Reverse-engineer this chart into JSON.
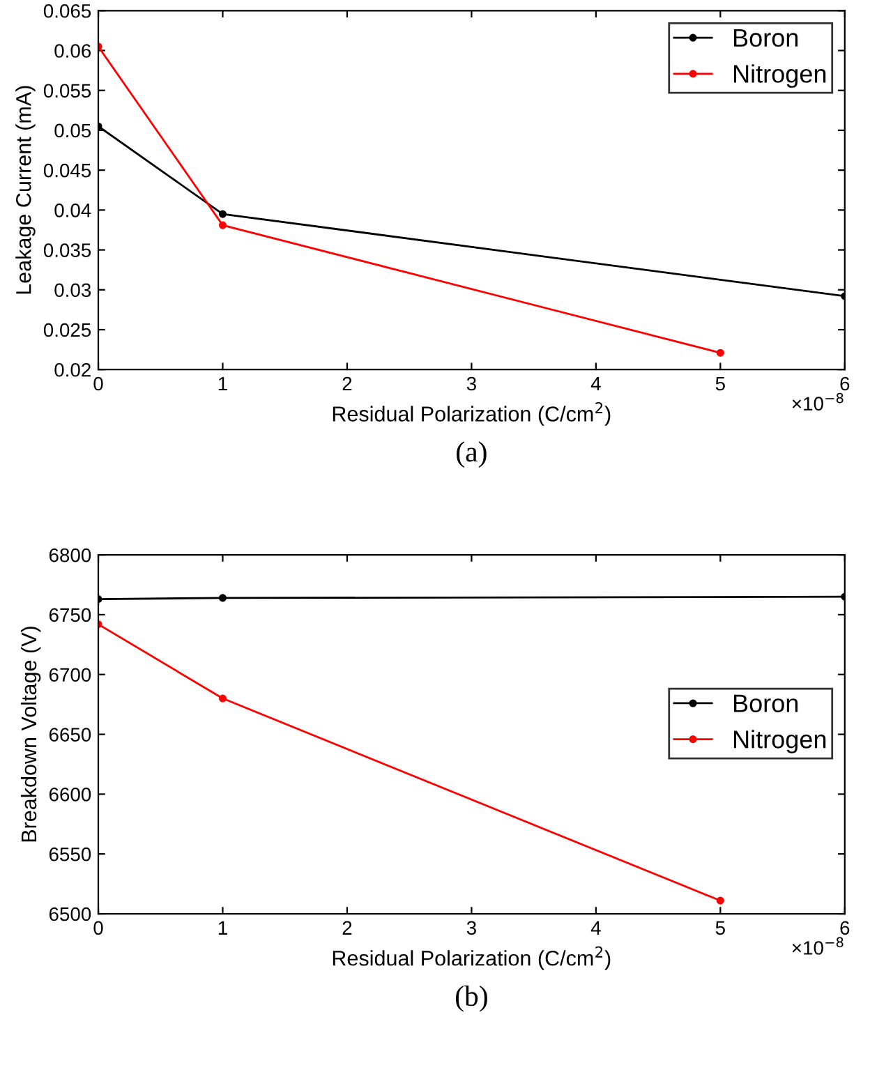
{
  "chart_data": [
    {
      "type": "line",
      "xlabel": "Residual Polarization (C/cm$^{2}$)",
      "ylabel": "Leakage Current (mA)",
      "xlim": [
        0,
        6
      ],
      "xticks": [
        0,
        1,
        2,
        3,
        4,
        5,
        6
      ],
      "ylim": [
        0.02,
        0.065
      ],
      "yticks": [
        {
          "value": 0.02,
          "label": "0.02"
        },
        {
          "value": 0.025,
          "label": "0.025"
        },
        {
          "value": 0.03,
          "label": "0.03"
        },
        {
          "value": 0.035,
          "label": "0.035"
        },
        {
          "value": 0.04,
          "label": "0.04"
        },
        {
          "value": 0.045,
          "label": "0.045"
        },
        {
          "value": 0.05,
          "label": "0.05"
        },
        {
          "value": 0.055,
          "label": "0.055"
        },
        {
          "value": 0.06,
          "label": "0.06"
        },
        {
          "value": 0.065,
          "label": "0.065"
        }
      ],
      "legend": "top right",
      "marker": "circle",
      "line_style": "solid",
      "grid": false,
      "series": [
        {
          "name": "Boron",
          "color": "#000000",
          "x": [
            0,
            1,
            6
          ],
          "values": [
            0.0505,
            0.0395,
            0.0292
          ]
        },
        {
          "name": "Nitrogen",
          "color": "#ff0000",
          "x": [
            0,
            1,
            5
          ],
          "values": [
            0.0605,
            0.0381,
            0.0221
          ]
        }
      ],
      "annotations": [
        "×10$^{−8}$",
        "(a)"
      ]
    },
    {
      "type": "line",
      "xlabel": "Residual Polarization (C/cm$^{2}$)",
      "ylabel": "Breakdown Voltage (V)",
      "xlim": [
        0,
        6
      ],
      "xticks": [
        0,
        1,
        2,
        3,
        4,
        5,
        6
      ],
      "ylim": [
        6500,
        6800
      ],
      "yticks": [
        6500,
        6550,
        6600,
        6650,
        6700,
        6750,
        6800
      ],
      "legend": "right",
      "marker": "circle",
      "line_style": "solid",
      "grid": false,
      "series": [
        {
          "name": "Boron",
          "color": "#000000",
          "x": [
            0,
            1,
            6
          ],
          "values": [
            6763,
            6764,
            6765
          ]
        },
        {
          "name": "Nitrogen",
          "color": "#ff0000",
          "x": [
            0,
            1,
            5
          ],
          "values": [
            6742,
            6680,
            6511
          ]
        }
      ],
      "annotations": [
        "×10$^{−8}$",
        "(b)"
      ]
    }
  ]
}
